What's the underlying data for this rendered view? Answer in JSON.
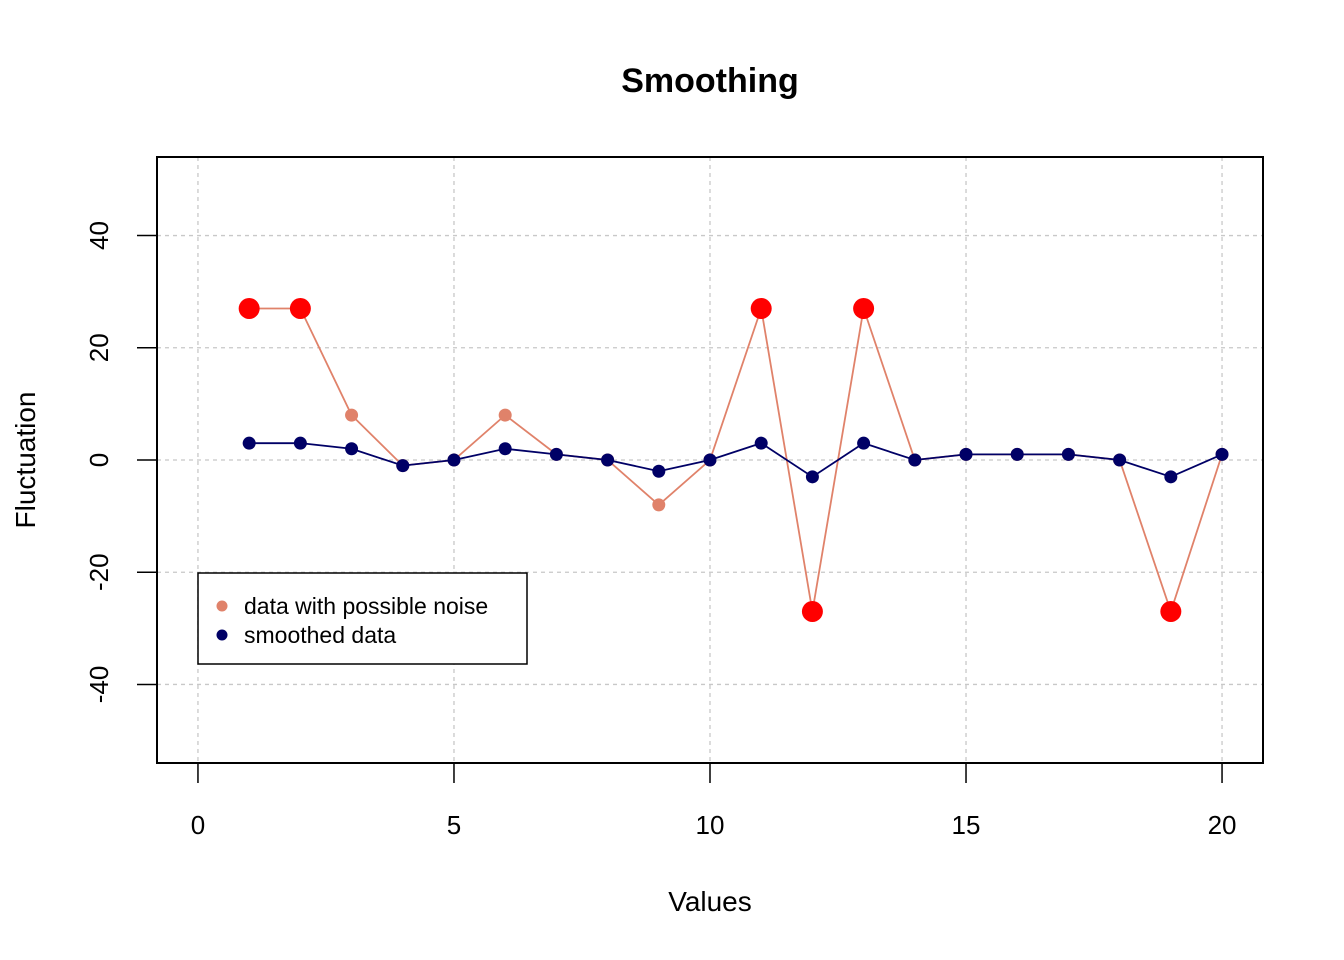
{
  "chart_data": {
    "type": "line",
    "title": "Smoothing",
    "xlabel": "Values",
    "ylabel": "Fluctuation",
    "xlim": [
      -0.8,
      20.8
    ],
    "ylim": [
      -54,
      54
    ],
    "x_ticks": [
      0,
      5,
      10,
      15,
      20
    ],
    "y_ticks": [
      -40,
      -20,
      0,
      20,
      40
    ],
    "grid": true,
    "legend_position": "bottom-left",
    "x": [
      1,
      2,
      3,
      4,
      5,
      6,
      7,
      8,
      9,
      10,
      11,
      12,
      13,
      14,
      15,
      16,
      17,
      18,
      19,
      20
    ],
    "series": [
      {
        "name": "data with possible noise",
        "color": "#E0826A",
        "values": [
          27,
          27,
          8,
          -1,
          0,
          8,
          1,
          0,
          -8,
          0,
          27,
          -27,
          27,
          0,
          1,
          1,
          1,
          0,
          -27,
          1
        ]
      },
      {
        "name": "smoothed data",
        "color": "#000066",
        "values": [
          3,
          3,
          2,
          -1,
          0,
          2,
          1,
          0,
          -2,
          0,
          3,
          -3,
          3,
          0,
          1,
          1,
          1,
          0,
          -3,
          1
        ]
      }
    ],
    "highlight_color": "#FF0000",
    "highlighted_points": [
      {
        "x": 1,
        "y": 27
      },
      {
        "x": 2,
        "y": 27
      },
      {
        "x": 11,
        "y": 27
      },
      {
        "x": 12,
        "y": -27
      },
      {
        "x": 13,
        "y": 27
      },
      {
        "x": 19,
        "y": -27
      }
    ]
  }
}
